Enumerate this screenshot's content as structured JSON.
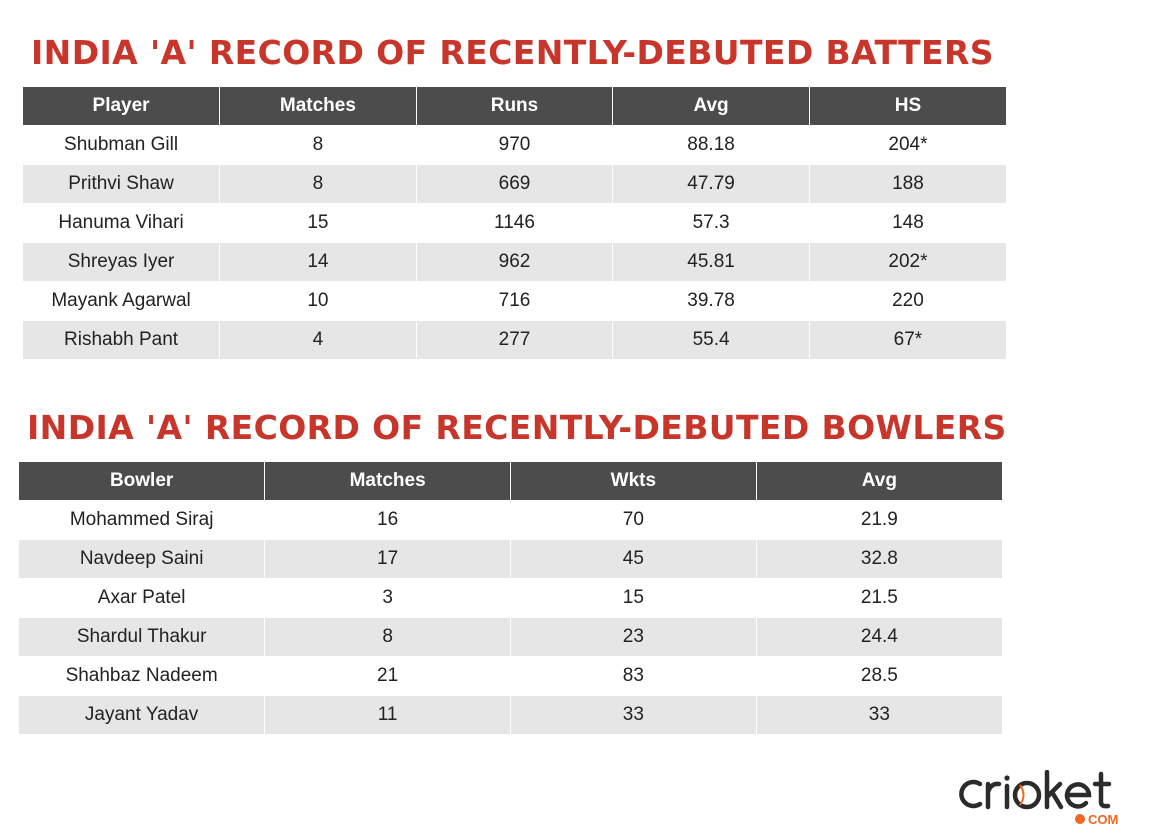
{
  "batters": {
    "title": "INDIA 'A' RECORD OF RECENTLY-DEBUTED BATTERS",
    "columns": [
      "Player",
      "Matches",
      "Runs",
      "Avg",
      "HS"
    ],
    "rows": [
      [
        "Shubman Gill",
        "8",
        "970",
        "88.18",
        "204*"
      ],
      [
        "Prithvi Shaw",
        "8",
        "669",
        "47.79",
        "188"
      ],
      [
        "Hanuma Vihari",
        "15",
        "1146",
        "57.3",
        "148"
      ],
      [
        "Shreyas Iyer",
        "14",
        "962",
        "45.81",
        "202*"
      ],
      [
        "Mayank Agarwal",
        "10",
        "716",
        "39.78",
        "220"
      ],
      [
        "Rishabh Pant",
        "4",
        "277",
        "55.4",
        "67*"
      ]
    ]
  },
  "bowlers": {
    "title": "INDIA 'A' RECORD OF RECENTLY-DEBUTED BOWLERS",
    "columns": [
      "Bowler",
      "Matches",
      "Wkts",
      "Avg"
    ],
    "rows": [
      [
        "Mohammed Siraj",
        "16",
        "70",
        "21.9"
      ],
      [
        "Navdeep Saini",
        "17",
        "45",
        "32.8"
      ],
      [
        "Axar Patel",
        "3",
        "15",
        "21.5"
      ],
      [
        "Shardul Thakur",
        "8",
        "23",
        "24.4"
      ],
      [
        "Shahbaz Nadeem",
        "21",
        "83",
        "28.5"
      ],
      [
        "Jayant Yadav",
        "11",
        "33",
        "33"
      ]
    ]
  },
  "logo": {
    "wordmark": "cricket",
    "suffix": "COM",
    "colors": {
      "dark": "#2b2b2b",
      "accent": "#f26522"
    }
  },
  "colors": {
    "title": "#c8352b",
    "header_bg": "#4c4c4c",
    "header_text": "#ffffff",
    "stripe": "#e6e6e6"
  }
}
